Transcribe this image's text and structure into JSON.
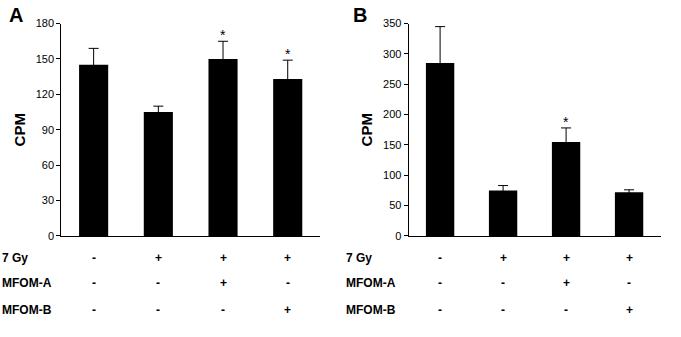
{
  "chart_data": [
    {
      "type": "bar",
      "title": "A",
      "y_label": "CPM",
      "categories": [
        null,
        null,
        null,
        null
      ],
      "values": [
        145,
        105,
        150,
        133
      ],
      "errors": [
        14,
        5,
        15,
        16
      ],
      "color": "#000000",
      "ylim": [
        0,
        180
      ],
      "yticks": [
        0,
        30,
        60,
        90,
        120,
        150,
        180
      ],
      "grid": false,
      "tick_labels": "y",
      "annotations": [
        {
          "category": 2,
          "text": "*"
        },
        {
          "category": 3,
          "text": "*"
        }
      ],
      "conditions": [
        {
          "label": "7 Gy",
          "values": [
            "-",
            "+",
            "+",
            "+"
          ]
        },
        {
          "label": "MFOM-A",
          "values": [
            "-",
            "-",
            "+",
            "-"
          ]
        },
        {
          "label": "MFOM-B",
          "values": [
            "-",
            "-",
            "-",
            "+"
          ]
        }
      ]
    },
    {
      "type": "bar",
      "title": "B",
      "y_label": "CPM",
      "categories": [
        null,
        null,
        null,
        null
      ],
      "values": [
        285,
        75,
        155,
        72
      ],
      "errors": [
        60,
        8,
        23,
        4
      ],
      "color": "#000000",
      "ylim": [
        0,
        350
      ],
      "yticks": [
        0,
        50,
        100,
        150,
        200,
        250,
        300,
        350
      ],
      "grid": false,
      "tick_labels": "y",
      "annotations": [
        {
          "category": 2,
          "text": "*"
        }
      ],
      "conditions": [
        {
          "label": "7 Gy",
          "values": [
            "-",
            "+",
            "+",
            "+"
          ]
        },
        {
          "label": "MFOM-A",
          "values": [
            "-",
            "-",
            "+",
            "-"
          ]
        },
        {
          "label": "MFOM-B",
          "values": [
            "-",
            "-",
            "-",
            "+"
          ]
        }
      ]
    }
  ]
}
